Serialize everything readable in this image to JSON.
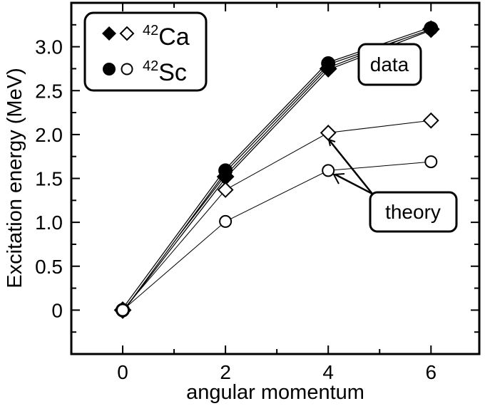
{
  "chart_data": {
    "type": "line",
    "title": "",
    "xlabel": "angular momentum",
    "ylabel": "Excitation energy (MeV)",
    "xlim": [
      -1,
      6.94
    ],
    "ylim": [
      -0.5,
      3.5
    ],
    "x_ticks": [
      "0",
      "2",
      "4",
      "6"
    ],
    "x_tick_values": [
      0,
      2,
      4,
      6
    ],
    "y_ticks": [
      "0",
      "0.5",
      "1.0",
      "1.5",
      "2.0",
      "2.5",
      "3.0"
    ],
    "y_tick_values": [
      0,
      0.5,
      1.0,
      1.5,
      2.0,
      2.5,
      3.0
    ],
    "grid": false,
    "legend": {
      "placement": "top-left",
      "entries": [
        {
          "mass": "42",
          "element": "Ca",
          "markers": [
            "filled-diamond",
            "open-diamond"
          ]
        },
        {
          "mass": "42",
          "element": "Sc",
          "markers": [
            "filled-circle",
            "open-circle"
          ]
        }
      ]
    },
    "annotations": {
      "data": "data",
      "theory": "theory"
    },
    "x": [
      0,
      2,
      4,
      6
    ],
    "series": [
      {
        "name": "42Ca data",
        "marker": "diamond",
        "filled": true,
        "values": [
          0,
          1.52,
          2.75,
          3.2
        ]
      },
      {
        "name": "42Sc data",
        "marker": "circle",
        "filled": true,
        "values": [
          0,
          1.59,
          2.81,
          3.21
        ]
      },
      {
        "name": "42Ca theory",
        "marker": "diamond",
        "filled": false,
        "values": [
          0,
          1.37,
          2.02,
          2.16
        ]
      },
      {
        "name": "42Sc theory",
        "marker": "circle",
        "filled": false,
        "values": [
          0,
          1.01,
          1.59,
          1.69
        ]
      }
    ]
  }
}
